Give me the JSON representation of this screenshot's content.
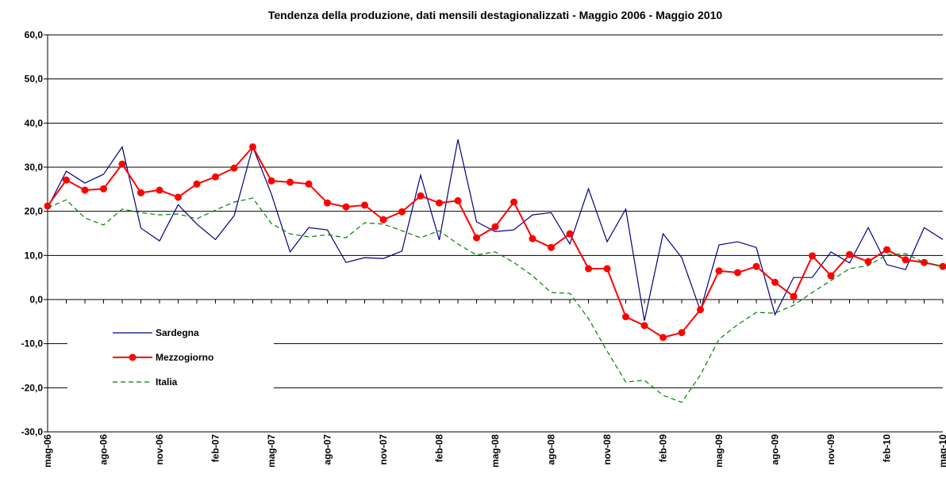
{
  "chart_data": {
    "type": "line",
    "title": "Tendenza della produzione, dati mensili destagionalizzati - Maggio 2006 - Maggio 2010",
    "categories": [
      "mag-06",
      null,
      null,
      "ago-06",
      null,
      null,
      "nov-06",
      null,
      null,
      "feb-07",
      null,
      null,
      "mag-07",
      null,
      null,
      "ago-07",
      null,
      null,
      "nov-07",
      null,
      null,
      "feb-08",
      null,
      null,
      "mag-08",
      null,
      null,
      "ago-08",
      null,
      null,
      "nov-08",
      null,
      null,
      "feb-09",
      null,
      null,
      "mag-09",
      null,
      null,
      "ago-09",
      null,
      null,
      "nov-09",
      null,
      null,
      "feb-10",
      null,
      null,
      "mag-10"
    ],
    "series": [
      {
        "name": "Sardegna",
        "color": "#000080",
        "style": "solid",
        "values": [
          20.8,
          29.1,
          26.4,
          28.4,
          34.6,
          16.2,
          13.3,
          21.5,
          17.1,
          13.6,
          19.0,
          34.6,
          23.9,
          10.8,
          16.3,
          15.8,
          8.4,
          9.5,
          9.3,
          11.0,
          28.2,
          13.5,
          36.3,
          17.6,
          15.4,
          15.8,
          19.2,
          19.7,
          12.6,
          25.1,
          13.1,
          20.5,
          -4.8,
          14.9,
          9.5,
          -2.5,
          12.4,
          13.1,
          11.8,
          -3.4,
          5.0,
          5.0,
          10.8,
          8.3,
          16.3,
          7.9,
          6.8,
          16.3,
          13.6
        ]
      },
      {
        "name": "Mezzogiorno",
        "color": "#ff0000",
        "style": "markers",
        "values": [
          21.2,
          27.1,
          24.8,
          25.1,
          30.7,
          24.2,
          24.8,
          23.2,
          26.2,
          27.8,
          29.8,
          34.6,
          26.9,
          26.6,
          26.2,
          21.9,
          21.0,
          21.4,
          18.1,
          19.9,
          23.5,
          21.9,
          22.4,
          14.0,
          16.5,
          22.1,
          13.8,
          11.8,
          14.9,
          7.0,
          7.0,
          -3.9,
          -5.9,
          -8.6,
          -7.5,
          -2.3,
          6.5,
          6.1,
          7.5,
          3.9,
          0.7,
          9.9,
          5.4,
          10.2,
          8.6,
          11.3,
          9.0,
          8.4,
          7.5
        ]
      },
      {
        "name": "Italia",
        "color": "#008000",
        "style": "dashed",
        "values": [
          20.8,
          22.6,
          18.5,
          16.9,
          20.5,
          19.7,
          19.2,
          19.4,
          18.3,
          20.3,
          22.1,
          23.0,
          17.2,
          14.9,
          14.2,
          14.7,
          14.0,
          17.4,
          17.1,
          15.6,
          14.0,
          15.6,
          12.6,
          10.1,
          10.8,
          8.4,
          5.4,
          1.6,
          1.4,
          -4.3,
          -11.7,
          -18.7,
          -18.3,
          -21.7,
          -23.3,
          -17.1,
          -9.0,
          -5.7,
          -2.9,
          -3.1,
          -1.3,
          1.6,
          4.3,
          7.0,
          7.7,
          10.1,
          10.4,
          8.4,
          7.5
        ]
      }
    ],
    "ylim": [
      -30,
      60
    ],
    "yticks": [
      {
        "value": -30,
        "label": "-30,0"
      },
      {
        "value": -20,
        "label": "-20,0"
      },
      {
        "value": -10,
        "label": "-10,0"
      },
      {
        "value": 0,
        "label": "0,0"
      },
      {
        "value": 10,
        "label": "10,0"
      },
      {
        "value": 20,
        "label": "20,0"
      },
      {
        "value": 30,
        "label": "30,0"
      },
      {
        "value": 40,
        "label": "40,0"
      },
      {
        "value": 50,
        "label": "50,0"
      },
      {
        "value": 60,
        "label": "60,0"
      }
    ],
    "grid": true,
    "legend": "lower left"
  }
}
